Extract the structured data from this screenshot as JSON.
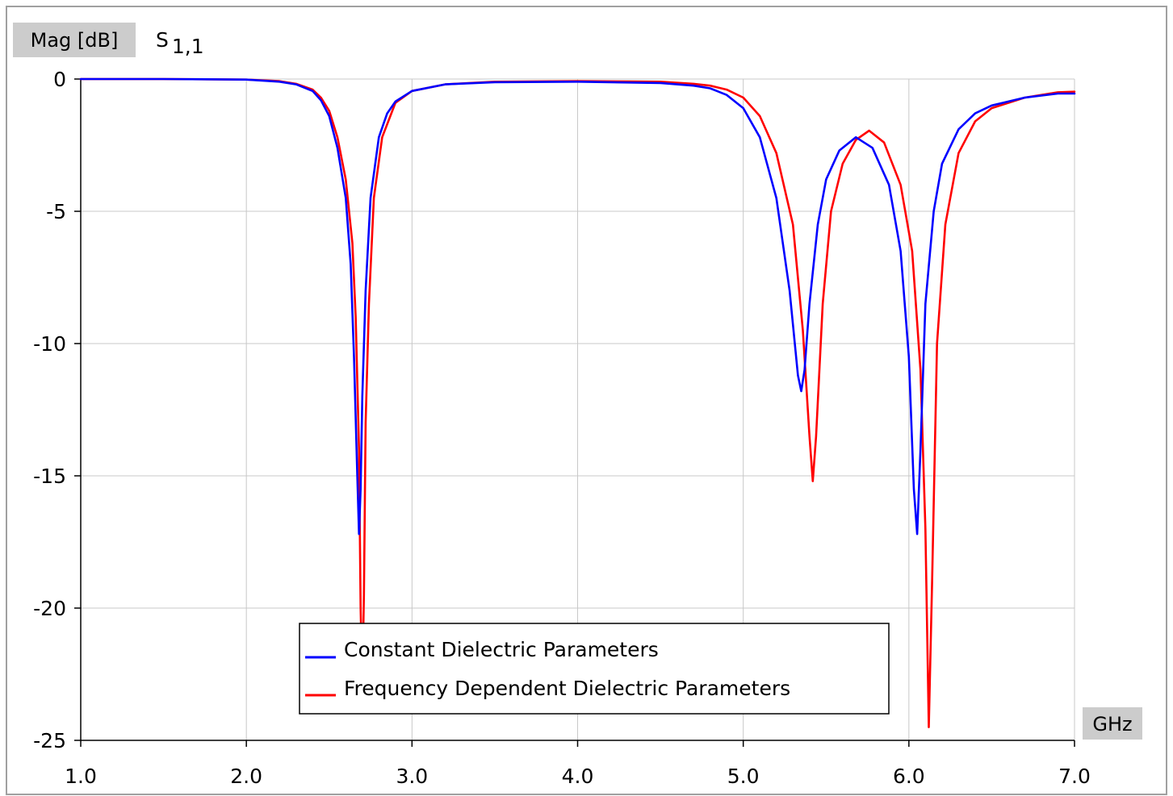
{
  "chart_data": {
    "type": "line",
    "ylabel": "Mag [dB]",
    "title_main": "S",
    "title_sub": "1,1",
    "xunit": "GHz",
    "xlim": [
      1.0,
      7.0
    ],
    "ylim": [
      -25,
      0
    ],
    "grid": true,
    "legend_position": "bottom-center",
    "xticks": [
      "1.0",
      "2.0",
      "3.0",
      "4.0",
      "5.0",
      "6.0",
      "7.0"
    ],
    "yticks": [
      "0",
      "-5",
      "-10",
      "-15",
      "-20",
      "-25"
    ],
    "xtick_values": [
      1,
      2,
      3,
      4,
      5,
      6,
      7
    ],
    "ytick_values": [
      0,
      -5,
      -10,
      -15,
      -20,
      -25
    ],
    "series": [
      {
        "name": "Constant Dielectric Parameters",
        "color": "#0000ff",
        "points": [
          [
            1.0,
            0.0
          ],
          [
            1.5,
            0.0
          ],
          [
            2.0,
            -0.02
          ],
          [
            2.2,
            -0.1
          ],
          [
            2.3,
            -0.2
          ],
          [
            2.4,
            -0.45
          ],
          [
            2.45,
            -0.8
          ],
          [
            2.5,
            -1.4
          ],
          [
            2.55,
            -2.6
          ],
          [
            2.6,
            -4.5
          ],
          [
            2.63,
            -7.0
          ],
          [
            2.65,
            -10.5
          ],
          [
            2.67,
            -15.0
          ],
          [
            2.68,
            -17.2
          ],
          [
            2.69,
            -15.5
          ],
          [
            2.7,
            -12.0
          ],
          [
            2.72,
            -8.0
          ],
          [
            2.75,
            -4.5
          ],
          [
            2.8,
            -2.2
          ],
          [
            2.85,
            -1.3
          ],
          [
            2.9,
            -0.85
          ],
          [
            3.0,
            -0.45
          ],
          [
            3.2,
            -0.2
          ],
          [
            3.5,
            -0.12
          ],
          [
            4.0,
            -0.1
          ],
          [
            4.5,
            -0.15
          ],
          [
            4.7,
            -0.25
          ],
          [
            4.8,
            -0.35
          ],
          [
            4.9,
            -0.6
          ],
          [
            5.0,
            -1.1
          ],
          [
            5.1,
            -2.2
          ],
          [
            5.2,
            -4.5
          ],
          [
            5.28,
            -8.0
          ],
          [
            5.33,
            -11.2
          ],
          [
            5.35,
            -11.8
          ],
          [
            5.37,
            -11.0
          ],
          [
            5.4,
            -8.5
          ],
          [
            5.45,
            -5.5
          ],
          [
            5.5,
            -3.8
          ],
          [
            5.58,
            -2.7
          ],
          [
            5.68,
            -2.2
          ],
          [
            5.78,
            -2.6
          ],
          [
            5.88,
            -4.0
          ],
          [
            5.95,
            -6.5
          ],
          [
            6.0,
            -10.5
          ],
          [
            6.03,
            -15.5
          ],
          [
            6.05,
            -17.2
          ],
          [
            6.07,
            -14.0
          ],
          [
            6.1,
            -8.5
          ],
          [
            6.15,
            -5.0
          ],
          [
            6.2,
            -3.2
          ],
          [
            6.3,
            -1.9
          ],
          [
            6.4,
            -1.3
          ],
          [
            6.5,
            -1.0
          ],
          [
            6.7,
            -0.7
          ],
          [
            6.9,
            -0.55
          ],
          [
            7.0,
            -0.55
          ]
        ]
      },
      {
        "name": "Frequency Dependent Dielectric Parameters",
        "color": "#ff0000",
        "points": [
          [
            1.0,
            0.0
          ],
          [
            1.5,
            0.0
          ],
          [
            2.0,
            -0.02
          ],
          [
            2.2,
            -0.08
          ],
          [
            2.3,
            -0.18
          ],
          [
            2.4,
            -0.4
          ],
          [
            2.45,
            -0.7
          ],
          [
            2.5,
            -1.2
          ],
          [
            2.55,
            -2.2
          ],
          [
            2.6,
            -3.8
          ],
          [
            2.64,
            -6.2
          ],
          [
            2.66,
            -9.0
          ],
          [
            2.68,
            -14.0
          ],
          [
            2.69,
            -20.0
          ],
          [
            2.7,
            -23.0
          ],
          [
            2.71,
            -19.5
          ],
          [
            2.72,
            -13.0
          ],
          [
            2.74,
            -8.5
          ],
          [
            2.77,
            -4.5
          ],
          [
            2.82,
            -2.2
          ],
          [
            2.9,
            -0.9
          ],
          [
            3.0,
            -0.45
          ],
          [
            3.2,
            -0.2
          ],
          [
            3.5,
            -0.1
          ],
          [
            4.0,
            -0.08
          ],
          [
            4.5,
            -0.1
          ],
          [
            4.7,
            -0.18
          ],
          [
            4.8,
            -0.25
          ],
          [
            4.9,
            -0.4
          ],
          [
            5.0,
            -0.7
          ],
          [
            5.1,
            -1.4
          ],
          [
            5.2,
            -2.8
          ],
          [
            5.3,
            -5.5
          ],
          [
            5.36,
            -9.5
          ],
          [
            5.4,
            -13.5
          ],
          [
            5.42,
            -15.2
          ],
          [
            5.44,
            -13.5
          ],
          [
            5.48,
            -8.5
          ],
          [
            5.53,
            -5.0
          ],
          [
            5.6,
            -3.2
          ],
          [
            5.68,
            -2.3
          ],
          [
            5.76,
            -1.95
          ],
          [
            5.85,
            -2.4
          ],
          [
            5.95,
            -4.0
          ],
          [
            6.02,
            -6.5
          ],
          [
            6.07,
            -11.0
          ],
          [
            6.1,
            -17.0
          ],
          [
            6.12,
            -24.5
          ],
          [
            6.14,
            -19.0
          ],
          [
            6.17,
            -10.0
          ],
          [
            6.22,
            -5.5
          ],
          [
            6.3,
            -2.8
          ],
          [
            6.4,
            -1.6
          ],
          [
            6.5,
            -1.1
          ],
          [
            6.7,
            -0.7
          ],
          [
            6.9,
            -0.5
          ],
          [
            7.0,
            -0.48
          ]
        ]
      }
    ]
  }
}
